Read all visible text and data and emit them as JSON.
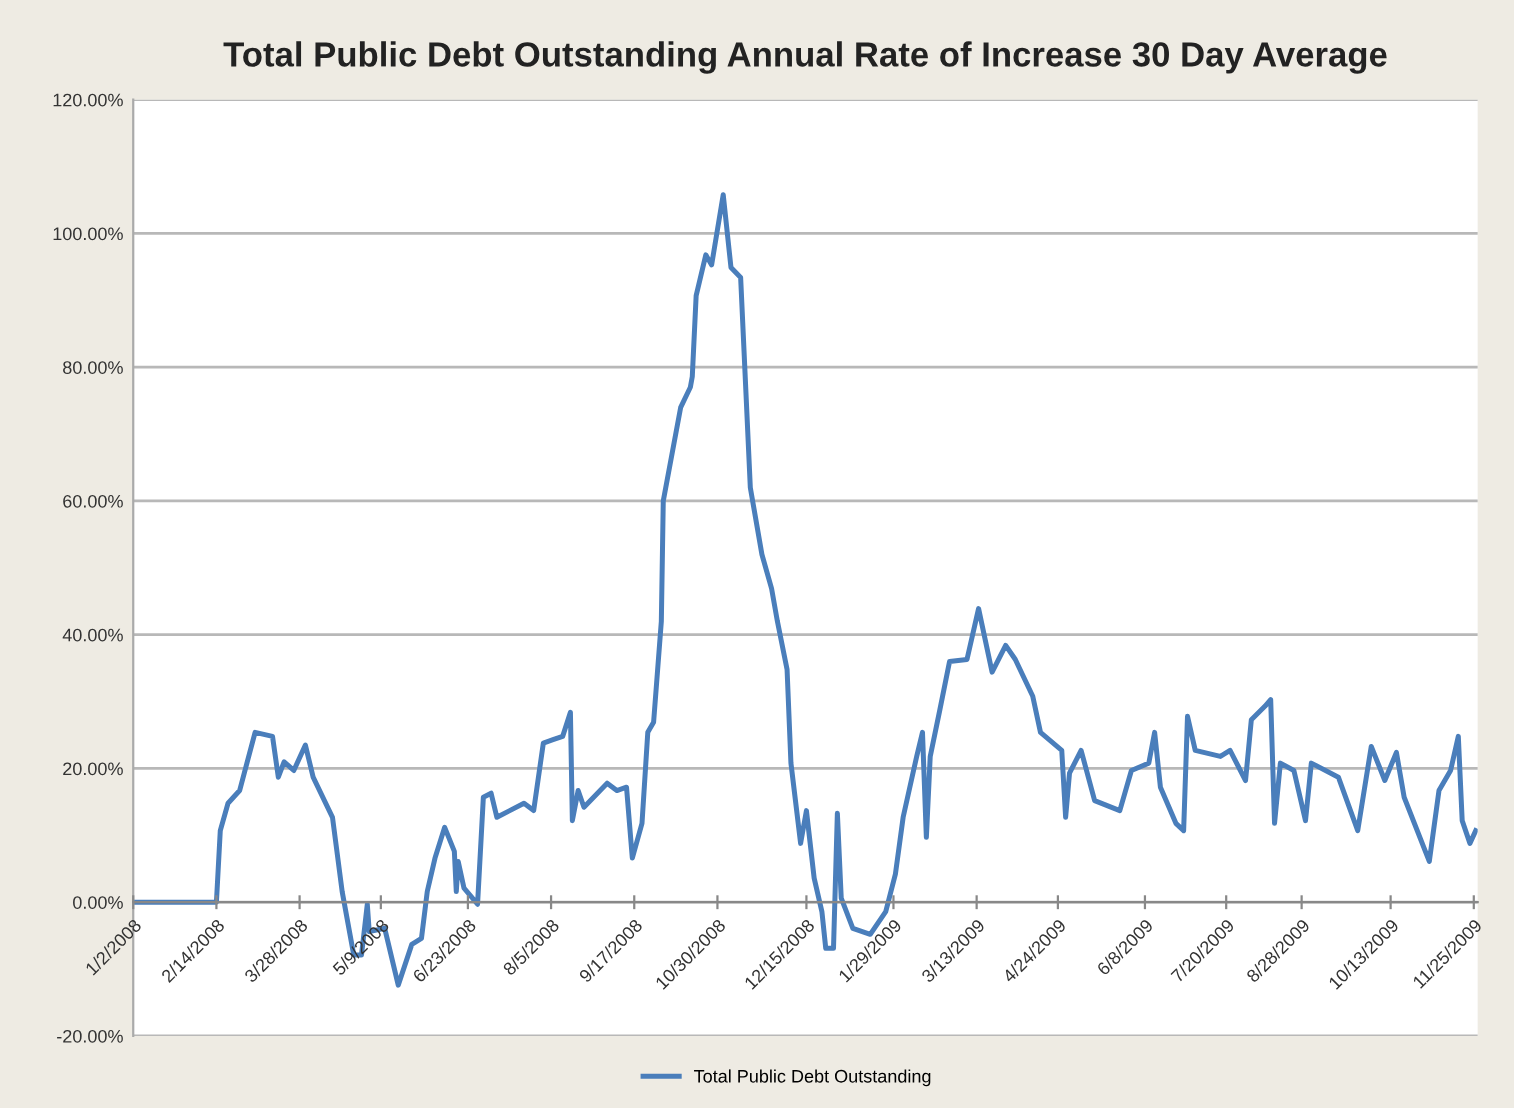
{
  "chart_data": {
    "type": "line",
    "title": "Total Public Debt Outstanding Annual Rate of Increase 30 Day Average",
    "x": [
      "2008-01-02",
      "2008-02-14",
      "2008-02-16",
      "2008-02-20",
      "2008-02-26",
      "2008-03-05",
      "2008-03-14",
      "2008-03-17",
      "2008-03-20",
      "2008-03-25",
      "2008-03-31",
      "2008-04-04",
      "2008-04-14",
      "2008-04-19",
      "2008-04-25",
      "2008-04-29",
      "2008-05-02",
      "2008-05-03",
      "2008-05-11",
      "2008-05-18",
      "2008-05-25",
      "2008-05-30",
      "2008-06-02",
      "2008-06-06",
      "2008-06-11",
      "2008-06-16",
      "2008-06-17",
      "2008-06-18",
      "2008-06-21",
      "2008-06-28",
      "2008-07-01",
      "2008-07-05",
      "2008-07-08",
      "2008-07-22",
      "2008-07-27",
      "2008-08-01",
      "2008-08-06",
      "2008-08-11",
      "2008-08-15",
      "2008-08-16",
      "2008-08-19",
      "2008-08-22",
      "2008-09-03",
      "2008-09-08",
      "2008-09-13",
      "2008-09-16",
      "2008-09-21",
      "2008-09-24",
      "2008-09-27",
      "2008-10-01",
      "2008-10-02",
      "2008-10-11",
      "2008-10-16",
      "2008-10-17",
      "2008-10-19",
      "2008-10-24",
      "2008-10-27",
      "2008-11-02",
      "2008-11-06",
      "2008-11-11",
      "2008-11-16",
      "2008-11-22",
      "2008-11-27",
      "2008-11-30",
      "2008-12-05",
      "2008-12-07",
      "2008-12-12",
      "2008-12-15",
      "2008-12-19",
      "2008-12-23",
      "2008-12-25",
      "2008-12-29",
      "2008-12-31",
      "2009-01-02",
      "2009-01-08",
      "2009-01-17",
      "2009-01-25",
      "2009-01-30",
      "2009-02-03",
      "2009-02-10",
      "2009-02-13",
      "2009-02-15",
      "2009-02-17",
      "2009-02-22",
      "2009-02-27",
      "2009-03-08",
      "2009-03-14",
      "2009-03-21",
      "2009-03-28",
      "2009-04-02",
      "2009-04-11",
      "2009-04-15",
      "2009-04-26",
      "2009-04-28",
      "2009-04-30",
      "2009-05-06",
      "2009-05-13",
      "2009-05-26",
      "2009-06-01",
      "2009-06-10",
      "2009-06-13",
      "2009-06-16",
      "2009-06-24",
      "2009-06-28",
      "2009-06-30",
      "2009-07-04",
      "2009-07-17",
      "2009-07-22",
      "2009-07-30",
      "2009-08-02",
      "2009-08-09",
      "2009-08-12",
      "2009-08-14",
      "2009-08-17",
      "2009-08-24",
      "2009-08-30",
      "2009-09-02",
      "2009-09-16",
      "2009-09-26",
      "2009-10-03",
      "2009-10-10",
      "2009-10-16",
      "2009-10-20",
      "2009-11-02",
      "2009-11-07",
      "2009-11-13",
      "2009-11-17",
      "2009-11-19",
      "2009-11-23",
      "2009-11-26"
    ],
    "series": [
      {
        "name": "Total Public Debt Outstanding",
        "color": "#4a7ebb",
        "values": [
          0,
          0,
          10.7,
          14.8,
          16.7,
          25.4,
          24.8,
          18.7,
          21,
          19.7,
          23.5,
          18.7,
          12.7,
          1.6,
          -7.9,
          -7.9,
          -0.3,
          -4.4,
          -3.9,
          -12.4,
          -6.3,
          -5.4,
          1.6,
          6.6,
          11.2,
          7.6,
          1.6,
          6.1,
          2.1,
          -0.3,
          15.7,
          16.3,
          12.7,
          14.8,
          13.7,
          23.8,
          24.3,
          24.8,
          28.4,
          12.2,
          16.7,
          14.2,
          17.8,
          16.7,
          17.2,
          6.6,
          11.8,
          25.4,
          26.9,
          42,
          60,
          74,
          77,
          78.6,
          90.7,
          96.8,
          95.3,
          105.8,
          94.9,
          93.4,
          62,
          52,
          46.9,
          42,
          34.8,
          20.8,
          8.8,
          13.7,
          3.6,
          -1.4,
          -6.9,
          -6.9,
          13.3,
          0.6,
          -3.9,
          -4.8,
          -1.4,
          4.2,
          12.7,
          21.8,
          25.4,
          9.7,
          21.8,
          28.8,
          36,
          36.3,
          43.9,
          34.4,
          38.4,
          36.3,
          30.8,
          25.4,
          22.7,
          12.7,
          19.3,
          22.7,
          15.2,
          13.7,
          19.7,
          20.8,
          25.4,
          17.2,
          11.8,
          10.7,
          27.8,
          22.7,
          21.8,
          22.7,
          18.2,
          27.3,
          29.3,
          30.3,
          11.8,
          20.8,
          19.7,
          12.2,
          20.8,
          18.7,
          10.7,
          23.3,
          18.2,
          22.4,
          15.7,
          6.1,
          16.7,
          19.7,
          24.8,
          12.2,
          8.8,
          10.7
        ]
      }
    ],
    "xlim": [
      "2008-01-02",
      "2009-11-27"
    ],
    "xticks": [
      {
        "value": "2008-01-02",
        "label": "1/2/2008"
      },
      {
        "value": "2008-02-14",
        "label": "2/14/2008"
      },
      {
        "value": "2008-03-28",
        "label": "3/28/2008"
      },
      {
        "value": "2008-05-09",
        "label": "5/9/2008"
      },
      {
        "value": "2008-06-23",
        "label": "6/23/2008"
      },
      {
        "value": "2008-08-05",
        "label": "8/5/2008"
      },
      {
        "value": "2008-09-17",
        "label": "9/17/2008"
      },
      {
        "value": "2008-10-30",
        "label": "10/30/2008"
      },
      {
        "value": "2008-12-15",
        "label": "12/15/2008"
      },
      {
        "value": "2009-01-29",
        "label": "1/29/2009"
      },
      {
        "value": "2009-03-13",
        "label": "3/13/2009"
      },
      {
        "value": "2009-04-24",
        "label": "4/24/2009"
      },
      {
        "value": "2009-06-08",
        "label": "6/8/2009"
      },
      {
        "value": "2009-07-20",
        "label": "7/20/2009"
      },
      {
        "value": "2009-08-28",
        "label": "8/28/2009"
      },
      {
        "value": "2009-10-13",
        "label": "10/13/2009"
      },
      {
        "value": "2009-11-25",
        "label": "11/25/2009"
      }
    ],
    "ylim": [
      -20,
      120
    ],
    "yticks": [
      {
        "value": -20,
        "label": "-20.00%"
      },
      {
        "value": 0,
        "label": "0.00%"
      },
      {
        "value": 20,
        "label": "20.00%"
      },
      {
        "value": 40,
        "label": "40.00%"
      },
      {
        "value": 60,
        "label": "60.00%"
      },
      {
        "value": 80,
        "label": "80.00%"
      },
      {
        "value": 100,
        "label": "100.00%"
      },
      {
        "value": 120,
        "label": "120.00%"
      }
    ],
    "grid": "y",
    "legend": "bottom",
    "marker": "none",
    "line_style": "solid"
  }
}
